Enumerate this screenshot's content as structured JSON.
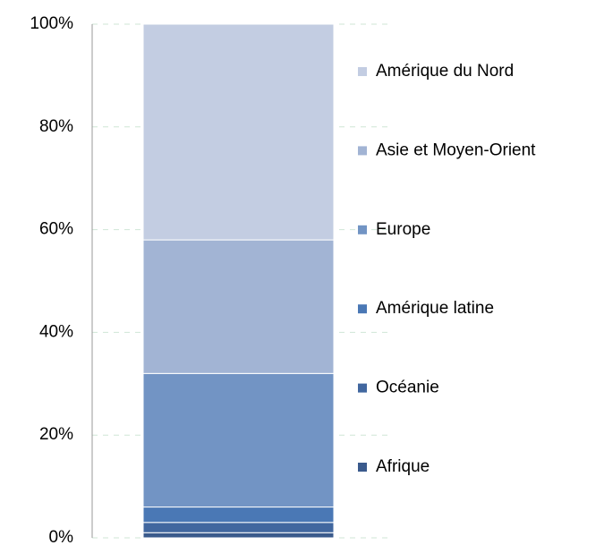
{
  "chart_data": {
    "type": "stacked_bar",
    "categories": [
      null
    ],
    "series": [
      {
        "name": "Afrique",
        "color": "#3a5a8c",
        "values": [
          1
        ]
      },
      {
        "name": "Océanie",
        "color": "#41679f",
        "values": [
          2
        ]
      },
      {
        "name": "Amérique latine",
        "color": "#4a78b5",
        "values": [
          3
        ]
      },
      {
        "name": "Europe",
        "color": "#7294c4",
        "values": [
          26
        ]
      },
      {
        "name": "Asie et Moyen-Orient",
        "color": "#a2b4d4",
        "values": [
          26
        ]
      },
      {
        "name": "Amérique du Nord",
        "color": "#c3cde2",
        "values": [
          42
        ]
      }
    ],
    "ylim": [
      0,
      100
    ],
    "yticks": [
      {
        "value": 0,
        "label": "0%"
      },
      {
        "value": 20,
        "label": "20%"
      },
      {
        "value": 40,
        "label": "40%"
      },
      {
        "value": 60,
        "label": "60%"
      },
      {
        "value": 80,
        "label": "80%"
      },
      {
        "value": 100,
        "label": "100%"
      }
    ],
    "grid": true,
    "legend": "right"
  }
}
